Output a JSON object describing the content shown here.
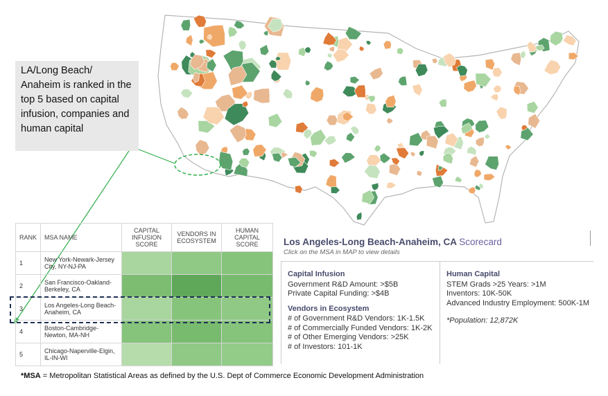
{
  "callout": {
    "text": "LA/Long Beach/ Anaheim is ranked in the top 5 based on capital infusion, companies and human capital"
  },
  "table": {
    "headers": [
      "RANK",
      "MSA NAME",
      "CAPITAL INFUSION SCORE",
      "VENDORS IN ECOSYSTEM",
      "HUMAN CAPITAL SCORE"
    ],
    "rows": [
      [
        1,
        "New York-Newark-Jersey City, NY-NJ-PA"
      ],
      [
        2,
        "San Francisco-Oakland-Berkeley, CA"
      ],
      [
        3,
        "Los Angeles-Long Beach-Anaheim, CA"
      ],
      [
        4,
        "Boston-Cambridge-Newton, MA-NH"
      ],
      [
        5,
        "Chicago-Naperville-Elgin, IL-IN-WI"
      ]
    ]
  },
  "scorecard": {
    "title_msa": "Los Angeles-Long Beach-Anaheim, CA",
    "title_suffix": "Scorecard",
    "subtitle": "Click on the MSA in MAP to view details",
    "sections": [
      {
        "heading": "Capital Infusion",
        "items": [
          "Government R&D Amount: >$5B",
          "Private Capital Funding: >$4B"
        ]
      },
      {
        "heading": "Vendors in Ecosystem",
        "items": [
          "# of Government R&D Vendors: 1K-1.5K",
          "# of Commercially Funded Vendors: 1K-2K",
          "# of Other Emerging Vendors: >25K",
          "# of Investors: 101-1K"
        ]
      },
      {
        "heading": "Human Capital",
        "items": [
          "STEM Grads >25 Years: >1M",
          "Inventors: 10K-50K",
          "Advanced Industry Employment: 500K-1M"
        ]
      }
    ],
    "population": "*Population: 12,872K"
  },
  "footnote": {
    "term": "*MSA",
    "text": " = Metropolitan Statistical Areas as defined by the U.S. Dept of Commerce Economic Development Administration"
  }
}
